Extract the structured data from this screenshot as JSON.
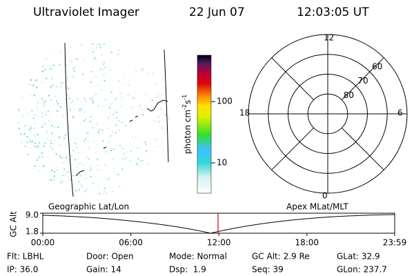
{
  "header": {
    "instrument": "Ultraviolet Imager",
    "date": "22 Jun 07",
    "time": "12:03:05 UT"
  },
  "colorbar": {
    "label": "photon cm",
    "sup1": "-2",
    "unit2": "s",
    "sup2": "-1",
    "scale": "log",
    "ylim": [
      3.2,
      570
    ],
    "yticks": [
      10,
      100
    ]
  },
  "polar": {
    "mlt_labels": {
      "top": "12",
      "left": "18",
      "right": "6",
      "bottom": "0"
    },
    "lat_outer": 50,
    "lat_circles": [
      60,
      70,
      80
    ]
  },
  "orbit": {
    "left_label": "Geographic Lat/Lon",
    "right_label": "Apex MLat/MLT",
    "ylabel": "GC Alt",
    "ylim": [
      1.8,
      9.0
    ],
    "yticks": [
      {
        "value": 9.0,
        "label": "9.0"
      },
      {
        "value": 1.8,
        "label": "1.8"
      }
    ],
    "xlim": [
      0,
      1439
    ],
    "xticks": [
      {
        "value": 0,
        "label": "00:00"
      },
      {
        "value": 360,
        "label": "06:00"
      },
      {
        "value": 720,
        "label": "12:00"
      },
      {
        "value": 1080,
        "label": "18:00"
      },
      {
        "value": 1439,
        "label": "23:59"
      }
    ]
  },
  "info": [
    [
      "Flt: LBHL",
      "Door: Open",
      "Mode: Normal",
      "GC Alt: 2.9 Re",
      "GLat: 32.9"
    ],
    [
      "IP: 36.0",
      "Gain: 14",
      "Dsp:  1.9",
      "Seq: 39",
      "GLon: 237.7"
    ]
  ]
}
